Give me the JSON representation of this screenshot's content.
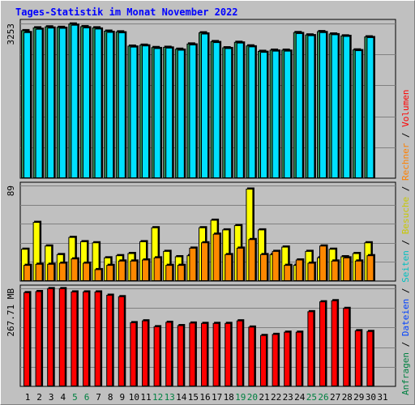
{
  "title": "Tages-Statistik im Monat November 2022",
  "chart_data": [
    {
      "type": "bar",
      "panel": "top",
      "ymax_label": "3253",
      "ylim": [
        0,
        3253
      ],
      "grid": true,
      "categories": [
        "1",
        "2",
        "3",
        "4",
        "5",
        "6",
        "7",
        "8",
        "9",
        "10",
        "11",
        "12",
        "13",
        "14",
        "15",
        "16",
        "17",
        "18",
        "19",
        "20",
        "21",
        "22",
        "23",
        "24",
        "25",
        "26",
        "27",
        "28",
        "29",
        "30",
        "31"
      ],
      "category_colors": [
        "#000000",
        "#000000",
        "#000000",
        "#000000",
        "#008040",
        "#008040",
        "#000000",
        "#000000",
        "#000000",
        "#000000",
        "#000000",
        "#008040",
        "#008040",
        "#000000",
        "#000000",
        "#000000",
        "#000000",
        "#000000",
        "#008040",
        "#008040",
        "#000000",
        "#000000",
        "#000000",
        "#000000",
        "#008040",
        "#008040",
        "#000000",
        "#000000",
        "#000000",
        "#000000",
        "#000000"
      ],
      "series": [
        {
          "name": "Anfragen",
          "color": "#2e8b57",
          "values": [
            3110,
            3170,
            3190,
            3180,
            3250,
            3195,
            3170,
            3100,
            3085,
            2785,
            2805,
            2755,
            2760,
            2720,
            2830,
            3065,
            2880,
            2750,
            2865,
            2790,
            2675,
            2700,
            2700,
            3070,
            3020,
            3090,
            3040,
            3000,
            2705,
            2980,
            0
          ]
        },
        {
          "name": "Dateien",
          "color": "#00e0ff",
          "values": [
            3070,
            3140,
            3165,
            3160,
            3225,
            3170,
            3145,
            3075,
            3065,
            2765,
            2790,
            2735,
            2745,
            2700,
            2810,
            3040,
            2860,
            2735,
            2850,
            2770,
            2655,
            2680,
            2680,
            3050,
            3005,
            3070,
            3025,
            2990,
            2690,
            2965,
            0
          ]
        }
      ]
    },
    {
      "type": "bar",
      "panel": "middle",
      "ymax_label": "89",
      "ylim": [
        0,
        89
      ],
      "grid": true,
      "series": [
        {
          "name": "Besuche",
          "color": "#ffff00",
          "values": [
            30,
            55,
            33,
            25,
            41,
            37,
            36,
            22,
            24,
            26,
            37,
            50,
            28,
            23,
            24,
            50,
            57,
            48,
            52,
            86,
            48,
            25,
            32,
            15,
            28,
            22,
            30,
            23,
            26,
            36,
            0
          ]
        },
        {
          "name": "Rechner",
          "color": "#ff8800",
          "values": [
            15,
            16,
            16,
            17,
            21,
            17,
            11,
            15,
            19,
            19,
            20,
            22,
            15,
            15,
            31,
            36,
            44,
            25,
            31,
            39,
            25,
            28,
            15,
            20,
            17,
            33,
            19,
            22,
            19,
            24,
            0
          ]
        }
      ]
    },
    {
      "type": "bar",
      "panel": "bottom",
      "ymax_label": "267.71 MB",
      "ylim": [
        0,
        267.71
      ],
      "grid": true,
      "series": [
        {
          "name": "Volumen",
          "color": "#ff0000",
          "values": [
            257,
            260,
            268,
            268,
            259,
            259,
            259,
            250,
            246,
            175,
            180,
            164,
            176,
            167,
            174,
            173,
            173,
            173,
            180,
            163,
            140,
            143,
            149,
            149,
            205,
            232,
            235,
            214,
            153,
            151,
            0
          ]
        }
      ]
    }
  ],
  "legend": {
    "position": "right-vertical",
    "items": [
      {
        "text": "Anfragen",
        "color": "#008040"
      },
      {
        "text": " / ",
        "color": "#000000"
      },
      {
        "text": "Dateien",
        "color": "#0040ff"
      },
      {
        "text": " / ",
        "color": "#000000"
      },
      {
        "text": "Seiten",
        "color": "#00c0c0"
      },
      {
        "text": " / ",
        "color": "#000000"
      },
      {
        "text": "Besuche",
        "color": "#c8c800"
      },
      {
        "text": " / ",
        "color": "#000000"
      },
      {
        "text": "Rechner",
        "color": "#ff8000"
      },
      {
        "text": " / ",
        "color": "#000000"
      },
      {
        "text": "Volumen",
        "color": "#ff0000"
      }
    ]
  }
}
